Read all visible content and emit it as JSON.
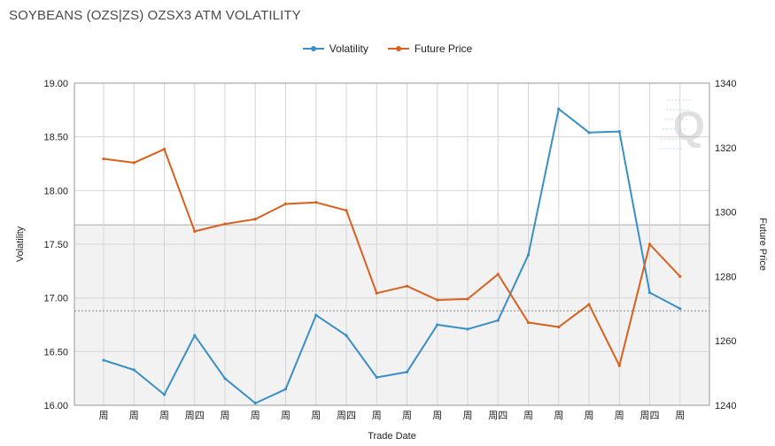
{
  "chart_data": {
    "type": "line",
    "title": "SOYBEANS (OZS|ZS) OZSX3 ATM VOLATILITY",
    "xlabel": "Trade Date",
    "ylabel": "Volatility",
    "y2label": "Future Price",
    "categories": [
      "周",
      "周",
      "周",
      "周四",
      "周",
      "周",
      "周",
      "周",
      "周四",
      "周",
      "周",
      "周",
      "周",
      "周四",
      "周",
      "周",
      "周",
      "周",
      "周四",
      "周"
    ],
    "ylim": [
      16.0,
      19.0
    ],
    "yticks": [
      "16.00",
      "16.50",
      "17.00",
      "17.50",
      "18.00",
      "18.50",
      "19.00"
    ],
    "y2lim": [
      1240,
      1340
    ],
    "y2ticks": [
      "1240",
      "1260",
      "1280",
      "1300",
      "1320",
      "1340"
    ],
    "grid": true,
    "legend_position": "top-center",
    "shaded_band_y": [
      16.0,
      17.68
    ],
    "reference_line_y": 16.88,
    "series": [
      {
        "name": "Volatility",
        "axis": "left",
        "color": "#3a8fc4",
        "values": [
          16.42,
          16.33,
          16.1,
          16.65,
          16.25,
          16.02,
          16.15,
          16.84,
          16.65,
          16.26,
          16.31,
          16.75,
          16.71,
          16.79,
          17.4,
          18.76,
          18.54,
          18.55,
          17.05,
          16.9
        ]
      },
      {
        "name": "Future Price",
        "axis": "right",
        "color": "#d9601e",
        "values": [
          1316.5,
          1315.3,
          1319.5,
          1294.0,
          1296.3,
          1297.8,
          1302.5,
          1303.0,
          1300.5,
          1274.8,
          1277.0,
          1272.7,
          1273.0,
          1280.7,
          1265.7,
          1264.3,
          1271.3,
          1252.3,
          1290.0,
          1280.0
        ]
      }
    ]
  },
  "legend": {
    "items": [
      "Volatility",
      "Future Price"
    ]
  },
  "watermark": "Q"
}
